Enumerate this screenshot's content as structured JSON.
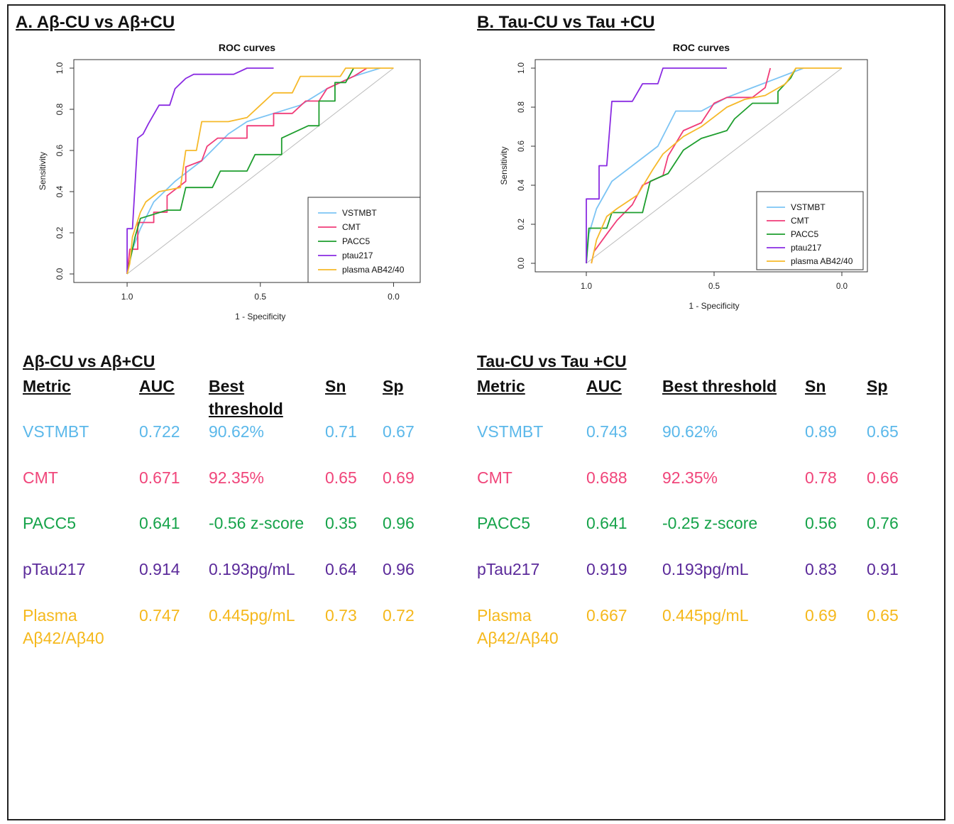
{
  "panels": [
    {
      "title": "A. Aβ-CU vs Aβ+CU",
      "table_title": "Aβ-CU vs Aβ+CU",
      "headers": {
        "metric": "Metric",
        "auc": "AUC",
        "threshold": "Best threshold",
        "sn": "Sn",
        "sp": "Sp"
      },
      "rows": [
        {
          "metric": "VSTMBT",
          "auc": "0.722",
          "threshold": "90.62%",
          "sn": "0.71",
          "sp": "0.67",
          "color": "#5bb8ea"
        },
        {
          "metric": "CMT",
          "auc": "0.671",
          "threshold": "92.35%",
          "sn": "0.65",
          "sp": "0.69",
          "color": "#f0457a"
        },
        {
          "metric": "PACC5",
          "auc": "0.641",
          "threshold": "-0.56 z-score",
          "sn": "0.35",
          "sp": "0.96",
          "color": "#16a34a"
        },
        {
          "metric": "pTau217",
          "auc": "0.914",
          "threshold": "0.193pg/mL",
          "sn": "0.64",
          "sp": "0.96",
          "color": "#5b2a9a"
        },
        {
          "metric": "Plasma Aβ42/Aβ40",
          "auc": "0.747",
          "threshold": "0.445pg/mL",
          "sn": "0.73",
          "sp": "0.72",
          "color": "#f5b81c"
        }
      ]
    },
    {
      "title": "B. Tau-CU vs Tau +CU",
      "table_title": "Tau-CU vs Tau +CU",
      "headers": {
        "metric": "Metric",
        "auc": "AUC",
        "threshold": "Best threshold",
        "sn": "Sn",
        "sp": "Sp"
      },
      "rows": [
        {
          "metric": "VSTMBT",
          "auc": "0.743",
          "threshold": "90.62%",
          "sn": "0.89",
          "sp": "0.65",
          "color": "#5bb8ea"
        },
        {
          "metric": "CMT",
          "auc": "0.688",
          "threshold": "92.35%",
          "sn": "0.78",
          "sp": "0.66",
          "color": "#f0457a"
        },
        {
          "metric": "PACC5",
          "auc": "0.641",
          "threshold": "-0.25 z-score",
          "sn": "0.56",
          "sp": "0.76",
          "color": "#16a34a"
        },
        {
          "metric": "pTau217",
          "auc": "0.919",
          "threshold": "0.193pg/mL",
          "sn": "0.83",
          "sp": "0.91",
          "color": "#5b2a9a"
        },
        {
          "metric": "Plasma Aβ42/Aβ40",
          "auc": "0.667",
          "threshold": "0.445pg/mL",
          "sn": "0.69",
          "sp": "0.65",
          "color": "#f5b81c"
        }
      ]
    }
  ],
  "chart_data": [
    {
      "type": "line",
      "title": "ROC curves",
      "xlabel": "1 - Specificity",
      "ylabel": "Sensitivity",
      "x_reversed": true,
      "xlim": [
        1.2,
        -0.1
      ],
      "ylim": [
        0,
        1
      ],
      "xticks": [
        "1.0",
        "0.5",
        "0.0"
      ],
      "yticks": [
        "0.0",
        "0.2",
        "0.4",
        "0.6",
        "0.8",
        "1.0"
      ],
      "legend_position": "bottom-right",
      "series": [
        {
          "name": "VSTMBT",
          "color": "#7cc4f4",
          "points": [
            [
              1,
              0
            ],
            [
              0.98,
              0.12
            ],
            [
              0.95,
              0.22
            ],
            [
              0.9,
              0.35
            ],
            [
              0.82,
              0.45
            ],
            [
              0.72,
              0.55
            ],
            [
              0.62,
              0.68
            ],
            [
              0.55,
              0.74
            ],
            [
              0.45,
              0.78
            ],
            [
              0.35,
              0.82
            ],
            [
              0.25,
              0.9
            ],
            [
              0.15,
              0.96
            ],
            [
              0.05,
              1
            ]
          ]
        },
        {
          "name": "CMT",
          "color": "#f03c78",
          "points": [
            [
              1,
              0
            ],
            [
              0.99,
              0.12
            ],
            [
              0.96,
              0.12
            ],
            [
              0.96,
              0.25
            ],
            [
              0.9,
              0.25
            ],
            [
              0.9,
              0.3
            ],
            [
              0.85,
              0.3
            ],
            [
              0.85,
              0.38
            ],
            [
              0.78,
              0.45
            ],
            [
              0.78,
              0.52
            ],
            [
              0.72,
              0.55
            ],
            [
              0.7,
              0.62
            ],
            [
              0.66,
              0.66
            ],
            [
              0.55,
              0.66
            ],
            [
              0.55,
              0.72
            ],
            [
              0.45,
              0.72
            ],
            [
              0.45,
              0.78
            ],
            [
              0.38,
              0.78
            ],
            [
              0.33,
              0.84
            ],
            [
              0.28,
              0.84
            ],
            [
              0.25,
              0.9
            ],
            [
              0.15,
              0.96
            ],
            [
              0.1,
              1
            ]
          ]
        },
        {
          "name": "PACC5",
          "color": "#1e9e2e",
          "points": [
            [
              1,
              0
            ],
            [
              0.97,
              0.18
            ],
            [
              0.95,
              0.27
            ],
            [
              0.85,
              0.31
            ],
            [
              0.8,
              0.31
            ],
            [
              0.78,
              0.42
            ],
            [
              0.68,
              0.42
            ],
            [
              0.65,
              0.5
            ],
            [
              0.55,
              0.5
            ],
            [
              0.52,
              0.58
            ],
            [
              0.42,
              0.58
            ],
            [
              0.42,
              0.66
            ],
            [
              0.32,
              0.72
            ],
            [
              0.28,
              0.72
            ],
            [
              0.28,
              0.84
            ],
            [
              0.22,
              0.84
            ],
            [
              0.22,
              0.93
            ],
            [
              0.18,
              0.93
            ],
            [
              0.15,
              1
            ]
          ]
        },
        {
          "name": "ptau217",
          "color": "#8a2be2",
          "points": [
            [
              1,
              0
            ],
            [
              1,
              0.22
            ],
            [
              0.98,
              0.22
            ],
            [
              0.96,
              0.66
            ],
            [
              0.94,
              0.68
            ],
            [
              0.92,
              0.73
            ],
            [
              0.88,
              0.82
            ],
            [
              0.84,
              0.82
            ],
            [
              0.82,
              0.9
            ],
            [
              0.78,
              0.95
            ],
            [
              0.75,
              0.97
            ],
            [
              0.6,
              0.97
            ],
            [
              0.55,
              1
            ],
            [
              0.45,
              1
            ]
          ]
        },
        {
          "name": "plasma AB42/40",
          "color": "#f6b92a",
          "points": [
            [
              1,
              0
            ],
            [
              0.99,
              0.05
            ],
            [
              0.98,
              0.18
            ],
            [
              0.95,
              0.3
            ],
            [
              0.93,
              0.35
            ],
            [
              0.88,
              0.4
            ],
            [
              0.8,
              0.42
            ],
            [
              0.78,
              0.6
            ],
            [
              0.74,
              0.6
            ],
            [
              0.72,
              0.74
            ],
            [
              0.62,
              0.74
            ],
            [
              0.55,
              0.76
            ],
            [
              0.5,
              0.82
            ],
            [
              0.45,
              0.88
            ],
            [
              0.38,
              0.88
            ],
            [
              0.35,
              0.96
            ],
            [
              0.2,
              0.96
            ],
            [
              0.18,
              1
            ],
            [
              0,
              1
            ]
          ]
        }
      ]
    },
    {
      "type": "line",
      "title": "ROC curves",
      "xlabel": "1 - Specificity",
      "ylabel": "Sensitivity",
      "x_reversed": true,
      "xlim": [
        1.2,
        -0.1
      ],
      "ylim": [
        0,
        1
      ],
      "xticks": [
        "1.0",
        "0.5",
        "0.0"
      ],
      "yticks": [
        "0.0",
        "0.2",
        "0.4",
        "0.6",
        "0.8",
        "1.0"
      ],
      "legend_position": "bottom-right",
      "series": [
        {
          "name": "VSTMBT",
          "color": "#7cc4f4",
          "points": [
            [
              1,
              0
            ],
            [
              0.99,
              0.15
            ],
            [
              0.96,
              0.28
            ],
            [
              0.9,
              0.42
            ],
            [
              0.8,
              0.52
            ],
            [
              0.72,
              0.6
            ],
            [
              0.65,
              0.78
            ],
            [
              0.55,
              0.78
            ],
            [
              0.45,
              0.85
            ],
            [
              0.35,
              0.9
            ],
            [
              0.25,
              0.95
            ],
            [
              0.15,
              1
            ]
          ]
        },
        {
          "name": "CMT",
          "color": "#f03c78",
          "points": [
            [
              0.98,
              0
            ],
            [
              0.97,
              0.06
            ],
            [
              0.92,
              0.15
            ],
            [
              0.88,
              0.22
            ],
            [
              0.82,
              0.3
            ],
            [
              0.78,
              0.4
            ],
            [
              0.7,
              0.45
            ],
            [
              0.68,
              0.55
            ],
            [
              0.62,
              0.68
            ],
            [
              0.55,
              0.72
            ],
            [
              0.5,
              0.82
            ],
            [
              0.45,
              0.85
            ],
            [
              0.35,
              0.85
            ],
            [
              0.3,
              0.9
            ],
            [
              0.28,
              1
            ]
          ]
        },
        {
          "name": "PACC5",
          "color": "#1e9e2e",
          "points": [
            [
              1,
              0
            ],
            [
              0.99,
              0.18
            ],
            [
              0.92,
              0.18
            ],
            [
              0.9,
              0.26
            ],
            [
              0.78,
              0.26
            ],
            [
              0.75,
              0.42
            ],
            [
              0.68,
              0.46
            ],
            [
              0.62,
              0.58
            ],
            [
              0.55,
              0.64
            ],
            [
              0.45,
              0.68
            ],
            [
              0.42,
              0.74
            ],
            [
              0.35,
              0.82
            ],
            [
              0.25,
              0.82
            ],
            [
              0.25,
              0.88
            ],
            [
              0.2,
              0.95
            ],
            [
              0.18,
              1
            ]
          ]
        },
        {
          "name": "ptau217",
          "color": "#8a2be2",
          "points": [
            [
              1,
              0
            ],
            [
              1,
              0.33
            ],
            [
              0.95,
              0.33
            ],
            [
              0.95,
              0.5
            ],
            [
              0.92,
              0.5
            ],
            [
              0.9,
              0.83
            ],
            [
              0.82,
              0.83
            ],
            [
              0.78,
              0.92
            ],
            [
              0.72,
              0.92
            ],
            [
              0.7,
              1
            ],
            [
              0.45,
              1
            ]
          ]
        },
        {
          "name": "plasma AB42/40",
          "color": "#f6b92a",
          "points": [
            [
              0.98,
              0
            ],
            [
              0.96,
              0.12
            ],
            [
              0.92,
              0.24
            ],
            [
              0.88,
              0.28
            ],
            [
              0.8,
              0.35
            ],
            [
              0.74,
              0.48
            ],
            [
              0.7,
              0.56
            ],
            [
              0.62,
              0.65
            ],
            [
              0.55,
              0.7
            ],
            [
              0.5,
              0.75
            ],
            [
              0.45,
              0.8
            ],
            [
              0.38,
              0.84
            ],
            [
              0.3,
              0.86
            ],
            [
              0.22,
              0.92
            ],
            [
              0.18,
              1
            ],
            [
              0,
              1
            ]
          ]
        }
      ]
    }
  ]
}
